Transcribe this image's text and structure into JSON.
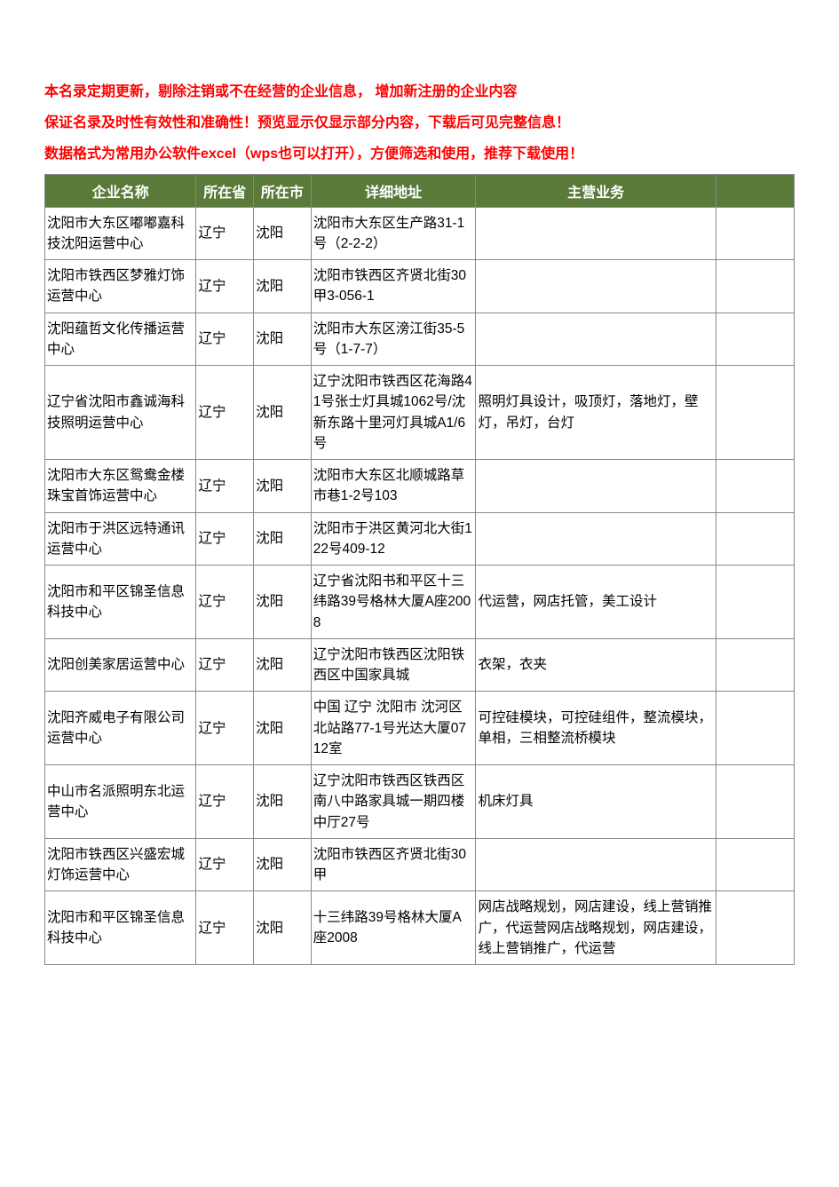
{
  "notices": [
    "本名录定期更新，剔除注销或不在经营的企业信息， 增加新注册的企业内容",
    "保证名录及时性有效性和准确性！预览显示仅显示部分内容，下载后可见完整信息！",
    "数据格式为常用办公软件excel（wps也可以打开），方便筛选和使用，推荐下载使用！"
  ],
  "headers": {
    "name": "企业名称",
    "province": "所在省",
    "city": "所在市",
    "address": "详细地址",
    "business": "主营业务",
    "ext": ""
  },
  "colors": {
    "header_bg": "#5a7a3a",
    "header_text": "#ffffff",
    "notice_text": "#ff0000",
    "border": "#888888",
    "cell_text": "#000000"
  },
  "rows": [
    {
      "name": "沈阳市大东区嘟嘟嘉科技沈阳运营中心",
      "province": "辽宁",
      "city": "沈阳",
      "address": "沈阳市大东区生产路31-1号（2-2-2）",
      "business": ""
    },
    {
      "name": "沈阳市铁西区梦雅灯饰运营中心",
      "province": "辽宁",
      "city": "沈阳",
      "address": "沈阳市铁西区齐贤北街30甲3-056-1",
      "business": ""
    },
    {
      "name": "沈阳蕴哲文化传播运营中心",
      "province": "辽宁",
      "city": "沈阳",
      "address": "沈阳市大东区滂江街35-5号（1-7-7）",
      "business": ""
    },
    {
      "name": "辽宁省沈阳市鑫诚海科技照明运营中心",
      "province": "辽宁",
      "city": "沈阳",
      "address": "辽宁沈阳市铁西区花海路41号张士灯具城1062号/沈新东路十里河灯具城A1/6号",
      "business": "照明灯具设计，吸顶灯，落地灯，壁灯，吊灯，台灯"
    },
    {
      "name": "沈阳市大东区鸳鸯金楼珠宝首饰运营中心",
      "province": "辽宁",
      "city": "沈阳",
      "address": "沈阳市大东区北顺城路草市巷1-2号103",
      "business": ""
    },
    {
      "name": "沈阳市于洪区远特通讯运营中心",
      "province": "辽宁",
      "city": "沈阳",
      "address": "沈阳市于洪区黄河北大街122号409-12",
      "business": ""
    },
    {
      "name": "沈阳市和平区锦圣信息科技中心",
      "province": "辽宁",
      "city": "沈阳",
      "address": "辽宁省沈阳书和平区十三纬路39号格林大厦A座2008",
      "business": "代运营，网店托管，美工设计"
    },
    {
      "name": "沈阳创美家居运营中心",
      "province": "辽宁",
      "city": "沈阳",
      "address": "辽宁沈阳市铁西区沈阳铁西区中国家具城",
      "business": "衣架，衣夹"
    },
    {
      "name": "沈阳齐威电子有限公司运营中心",
      "province": "辽宁",
      "city": "沈阳",
      "address": "中国 辽宁 沈阳市 沈河区北站路77-1号光达大厦0712室",
      "business": "可控硅模块，可控硅组件，整流模块，单相，三相整流桥模块"
    },
    {
      "name": "中山市名派照明东北运营中心",
      "province": "辽宁",
      "city": "沈阳",
      "address": "辽宁沈阳市铁西区铁西区南八中路家具城一期四楼中厅27号",
      "business": "机床灯具"
    },
    {
      "name": "沈阳市铁西区兴盛宏城灯饰运营中心",
      "province": "辽宁",
      "city": "沈阳",
      "address": "沈阳市铁西区齐贤北街30甲",
      "business": ""
    },
    {
      "name": "沈阳市和平区锦圣信息科技中心",
      "province": "辽宁",
      "city": "沈阳",
      "address": "十三纬路39号格林大厦A座2008",
      "business": "网店战略规划，网店建设，线上营销推广，代运营网店战略规划，网店建设，线上营销推广，代运营"
    }
  ]
}
